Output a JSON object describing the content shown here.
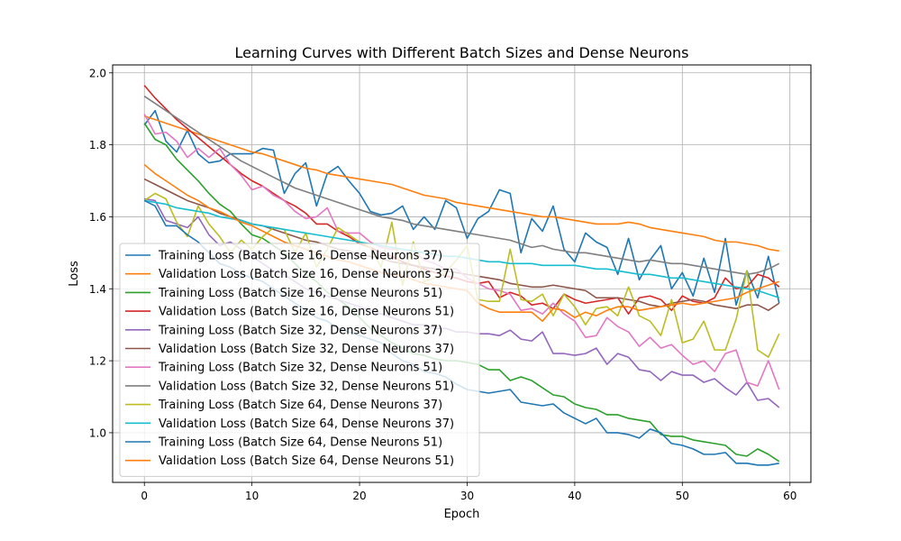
{
  "chart_data": {
    "type": "line",
    "title": "Learning Curves with Different Batch Sizes and Dense Neurons",
    "xlabel": "Epoch",
    "ylabel": "Loss",
    "xlim": [
      -2.95,
      61.95
    ],
    "ylim": [
      0.862,
      2.022
    ],
    "xticks": [
      0,
      10,
      20,
      30,
      40,
      50,
      60
    ],
    "yticks": [
      1.0,
      1.2,
      1.4,
      1.6,
      1.8,
      2.0
    ],
    "grid": true,
    "legend_position": "lower-left",
    "x": [
      0,
      1,
      2,
      3,
      4,
      5,
      6,
      7,
      8,
      9,
      10,
      11,
      12,
      13,
      14,
      15,
      16,
      17,
      18,
      19,
      20,
      21,
      22,
      23,
      24,
      25,
      26,
      27,
      28,
      29,
      30,
      31,
      32,
      33,
      34,
      35,
      36,
      37,
      38,
      39,
      40,
      41,
      42,
      43,
      44,
      45,
      46,
      47,
      48,
      49,
      50,
      51,
      52,
      53,
      54,
      55,
      56,
      57,
      58,
      59
    ],
    "series": [
      {
        "name": "Training Loss (Batch Size 16, Dense Neurons 37)",
        "color": "#1f77b4",
        "values": [
          1.855,
          1.895,
          1.81,
          1.78,
          1.84,
          1.775,
          1.75,
          1.755,
          1.775,
          1.775,
          1.775,
          1.79,
          1.785,
          1.665,
          1.72,
          1.75,
          1.63,
          1.72,
          1.74,
          1.7,
          1.665,
          1.615,
          1.605,
          1.61,
          1.63,
          1.565,
          1.6,
          1.565,
          1.645,
          1.625,
          1.54,
          1.595,
          1.615,
          1.675,
          1.665,
          1.5,
          1.595,
          1.56,
          1.63,
          1.51,
          1.475,
          1.555,
          1.53,
          1.515,
          1.44,
          1.54,
          1.425,
          1.48,
          1.52,
          1.4,
          1.445,
          1.38,
          1.485,
          1.39,
          1.54,
          1.355,
          1.45,
          1.375,
          1.49,
          1.36
        ]
      },
      {
        "name": "Validation Loss (Batch Size 16, Dense Neurons 37)",
        "color": "#ff7f0e",
        "values": [
          1.88,
          1.87,
          1.86,
          1.85,
          1.84,
          1.83,
          1.82,
          1.81,
          1.8,
          1.79,
          1.78,
          1.775,
          1.765,
          1.755,
          1.745,
          1.735,
          1.73,
          1.72,
          1.715,
          1.71,
          1.705,
          1.7,
          1.695,
          1.69,
          1.68,
          1.67,
          1.66,
          1.655,
          1.65,
          1.64,
          1.635,
          1.63,
          1.625,
          1.62,
          1.615,
          1.61,
          1.605,
          1.6,
          1.6,
          1.595,
          1.59,
          1.585,
          1.58,
          1.58,
          1.58,
          1.585,
          1.58,
          1.57,
          1.565,
          1.56,
          1.555,
          1.55,
          1.545,
          1.535,
          1.53,
          1.53,
          1.525,
          1.52,
          1.51,
          1.505
        ]
      },
      {
        "name": "Training Loss (Batch Size 16, Dense Neurons 51)",
        "color": "#2ca02c",
        "values": [
          1.86,
          1.815,
          1.8,
          1.76,
          1.73,
          1.7,
          1.665,
          1.635,
          1.615,
          1.58,
          1.55,
          1.54,
          1.52,
          1.5,
          1.47,
          1.44,
          1.42,
          1.39,
          1.37,
          1.35,
          1.32,
          1.29,
          1.27,
          1.25,
          1.235,
          1.22,
          1.215,
          1.205,
          1.2,
          1.2,
          1.195,
          1.19,
          1.175,
          1.175,
          1.145,
          1.155,
          1.145,
          1.125,
          1.105,
          1.1,
          1.08,
          1.07,
          1.065,
          1.05,
          1.05,
          1.04,
          1.035,
          1.03,
          0.995,
          0.99,
          0.99,
          0.98,
          0.975,
          0.97,
          0.965,
          0.94,
          0.935,
          0.955,
          0.94,
          0.92
        ]
      },
      {
        "name": "Validation Loss (Batch Size 16, Dense Neurons 51)",
        "color": "#d62728",
        "values": [
          1.965,
          1.93,
          1.9,
          1.87,
          1.845,
          1.82,
          1.795,
          1.77,
          1.745,
          1.72,
          1.7,
          1.685,
          1.665,
          1.645,
          1.63,
          1.61,
          1.58,
          1.58,
          1.56,
          1.545,
          1.525,
          1.515,
          1.5,
          1.49,
          1.475,
          1.465,
          1.455,
          1.445,
          1.435,
          1.43,
          1.42,
          1.415,
          1.42,
          1.375,
          1.39,
          1.38,
          1.355,
          1.36,
          1.345,
          1.385,
          1.37,
          1.36,
          1.365,
          1.37,
          1.375,
          1.33,
          1.375,
          1.38,
          1.37,
          1.34,
          1.38,
          1.365,
          1.36,
          1.375,
          1.43,
          1.4,
          1.405,
          1.44,
          1.43,
          1.405
        ]
      },
      {
        "name": "Training Loss (Batch Size 32, Dense Neurons 37)",
        "color": "#9467bd",
        "values": [
          1.65,
          1.645,
          1.59,
          1.58,
          1.57,
          1.6,
          1.55,
          1.52,
          1.53,
          1.51,
          1.49,
          1.47,
          1.45,
          1.44,
          1.42,
          1.4,
          1.39,
          1.38,
          1.37,
          1.36,
          1.35,
          1.34,
          1.33,
          1.32,
          1.31,
          1.3,
          1.3,
          1.29,
          1.29,
          1.28,
          1.28,
          1.275,
          1.275,
          1.27,
          1.285,
          1.26,
          1.255,
          1.28,
          1.22,
          1.22,
          1.215,
          1.22,
          1.235,
          1.19,
          1.22,
          1.21,
          1.175,
          1.17,
          1.145,
          1.17,
          1.16,
          1.16,
          1.14,
          1.15,
          1.125,
          1.105,
          1.14,
          1.09,
          1.095,
          1.07
        ]
      },
      {
        "name": "Validation Loss (Batch Size 32, Dense Neurons 37)",
        "color": "#8c564b",
        "values": [
          1.705,
          1.69,
          1.675,
          1.66,
          1.645,
          1.635,
          1.625,
          1.61,
          1.6,
          1.59,
          1.58,
          1.575,
          1.565,
          1.555,
          1.545,
          1.535,
          1.53,
          1.52,
          1.51,
          1.505,
          1.495,
          1.49,
          1.485,
          1.475,
          1.47,
          1.465,
          1.46,
          1.455,
          1.45,
          1.445,
          1.44,
          1.435,
          1.43,
          1.425,
          1.415,
          1.41,
          1.405,
          1.405,
          1.41,
          1.405,
          1.4,
          1.395,
          1.375,
          1.375,
          1.375,
          1.37,
          1.365,
          1.355,
          1.35,
          1.36,
          1.365,
          1.37,
          1.365,
          1.355,
          1.35,
          1.345,
          1.355,
          1.355,
          1.34,
          1.36
        ]
      },
      {
        "name": "Training Loss (Batch Size 32, Dense Neurons 51)",
        "color": "#e377c2",
        "values": [
          1.885,
          1.83,
          1.835,
          1.81,
          1.765,
          1.79,
          1.765,
          1.79,
          1.745,
          1.715,
          1.675,
          1.685,
          1.66,
          1.645,
          1.615,
          1.595,
          1.6,
          1.625,
          1.56,
          1.555,
          1.555,
          1.53,
          1.515,
          1.51,
          1.51,
          1.505,
          1.48,
          1.47,
          1.455,
          1.455,
          1.43,
          1.415,
          1.4,
          1.395,
          1.385,
          1.34,
          1.345,
          1.33,
          1.36,
          1.33,
          1.31,
          1.265,
          1.27,
          1.32,
          1.295,
          1.28,
          1.24,
          1.265,
          1.235,
          1.245,
          1.215,
          1.19,
          1.2,
          1.17,
          1.22,
          1.23,
          1.14,
          1.13,
          1.2,
          1.12
        ]
      },
      {
        "name": "Validation Loss (Batch Size 32, Dense Neurons 51)",
        "color": "#7f7f7f",
        "values": [
          1.935,
          1.915,
          1.895,
          1.875,
          1.855,
          1.835,
          1.815,
          1.795,
          1.775,
          1.755,
          1.74,
          1.725,
          1.71,
          1.695,
          1.68,
          1.67,
          1.66,
          1.65,
          1.64,
          1.63,
          1.62,
          1.61,
          1.6,
          1.595,
          1.59,
          1.58,
          1.575,
          1.57,
          1.565,
          1.56,
          1.555,
          1.55,
          1.545,
          1.54,
          1.535,
          1.525,
          1.515,
          1.52,
          1.51,
          1.505,
          1.5,
          1.5,
          1.495,
          1.49,
          1.485,
          1.48,
          1.475,
          1.48,
          1.475,
          1.47,
          1.47,
          1.465,
          1.46,
          1.455,
          1.45,
          1.445,
          1.44,
          1.445,
          1.455,
          1.47
        ]
      },
      {
        "name": "Training Loss (Batch Size 64, Dense Neurons 37)",
        "color": "#bcbd22",
        "values": [
          1.645,
          1.665,
          1.65,
          1.585,
          1.545,
          1.63,
          1.58,
          1.545,
          1.5,
          1.535,
          1.51,
          1.545,
          1.57,
          1.565,
          1.5,
          1.555,
          1.46,
          1.51,
          1.57,
          1.55,
          1.53,
          1.515,
          1.46,
          1.585,
          1.41,
          1.53,
          1.42,
          1.43,
          1.445,
          1.48,
          1.52,
          1.37,
          1.365,
          1.365,
          1.51,
          1.37,
          1.365,
          1.385,
          1.325,
          1.385,
          1.35,
          1.3,
          1.345,
          1.35,
          1.325,
          1.405,
          1.325,
          1.31,
          1.27,
          1.37,
          1.25,
          1.26,
          1.31,
          1.23,
          1.23,
          1.315,
          1.45,
          1.23,
          1.21,
          1.275
        ]
      },
      {
        "name": "Validation Loss (Batch Size 64, Dense Neurons 37)",
        "color": "#17becf",
        "values": [
          1.645,
          1.64,
          1.635,
          1.625,
          1.62,
          1.615,
          1.61,
          1.6,
          1.595,
          1.59,
          1.58,
          1.575,
          1.57,
          1.565,
          1.56,
          1.555,
          1.55,
          1.545,
          1.54,
          1.535,
          1.53,
          1.525,
          1.52,
          1.515,
          1.51,
          1.505,
          1.5,
          1.495,
          1.49,
          1.49,
          1.485,
          1.48,
          1.475,
          1.475,
          1.47,
          1.47,
          1.47,
          1.465,
          1.465,
          1.465,
          1.465,
          1.46,
          1.455,
          1.455,
          1.45,
          1.445,
          1.44,
          1.44,
          1.435,
          1.43,
          1.43,
          1.425,
          1.42,
          1.415,
          1.41,
          1.405,
          1.4,
          1.395,
          1.385,
          1.375
        ]
      },
      {
        "name": "Training Loss (Batch Size 64, Dense Neurons 51)",
        "color": "#1f77b4",
        "values": [
          1.645,
          1.63,
          1.575,
          1.575,
          1.55,
          1.53,
          1.5,
          1.47,
          1.46,
          1.44,
          1.43,
          1.42,
          1.4,
          1.38,
          1.36,
          1.34,
          1.32,
          1.31,
          1.29,
          1.28,
          1.27,
          1.26,
          1.25,
          1.22,
          1.2,
          1.19,
          1.17,
          1.165,
          1.155,
          1.135,
          1.12,
          1.115,
          1.11,
          1.115,
          1.12,
          1.085,
          1.08,
          1.075,
          1.08,
          1.055,
          1.04,
          1.025,
          1.04,
          1.0,
          1.0,
          0.995,
          0.985,
          1.01,
          1.0,
          0.97,
          0.965,
          0.955,
          0.94,
          0.94,
          0.945,
          0.915,
          0.915,
          0.91,
          0.91,
          0.915
        ]
      },
      {
        "name": "Validation Loss (Batch Size 64, Dense Neurons 51)",
        "color": "#ff7f0e",
        "values": [
          1.745,
          1.72,
          1.7,
          1.68,
          1.66,
          1.645,
          1.625,
          1.615,
          1.6,
          1.585,
          1.575,
          1.56,
          1.545,
          1.53,
          1.52,
          1.51,
          1.5,
          1.49,
          1.48,
          1.475,
          1.465,
          1.455,
          1.445,
          1.44,
          1.435,
          1.425,
          1.415,
          1.41,
          1.405,
          1.4,
          1.395,
          1.36,
          1.345,
          1.335,
          1.335,
          1.335,
          1.335,
          1.31,
          1.345,
          1.34,
          1.32,
          1.335,
          1.325,
          1.34,
          1.35,
          1.35,
          1.34,
          1.345,
          1.35,
          1.355,
          1.36,
          1.355,
          1.36,
          1.365,
          1.37,
          1.375,
          1.39,
          1.4,
          1.41,
          1.42
        ]
      }
    ]
  }
}
